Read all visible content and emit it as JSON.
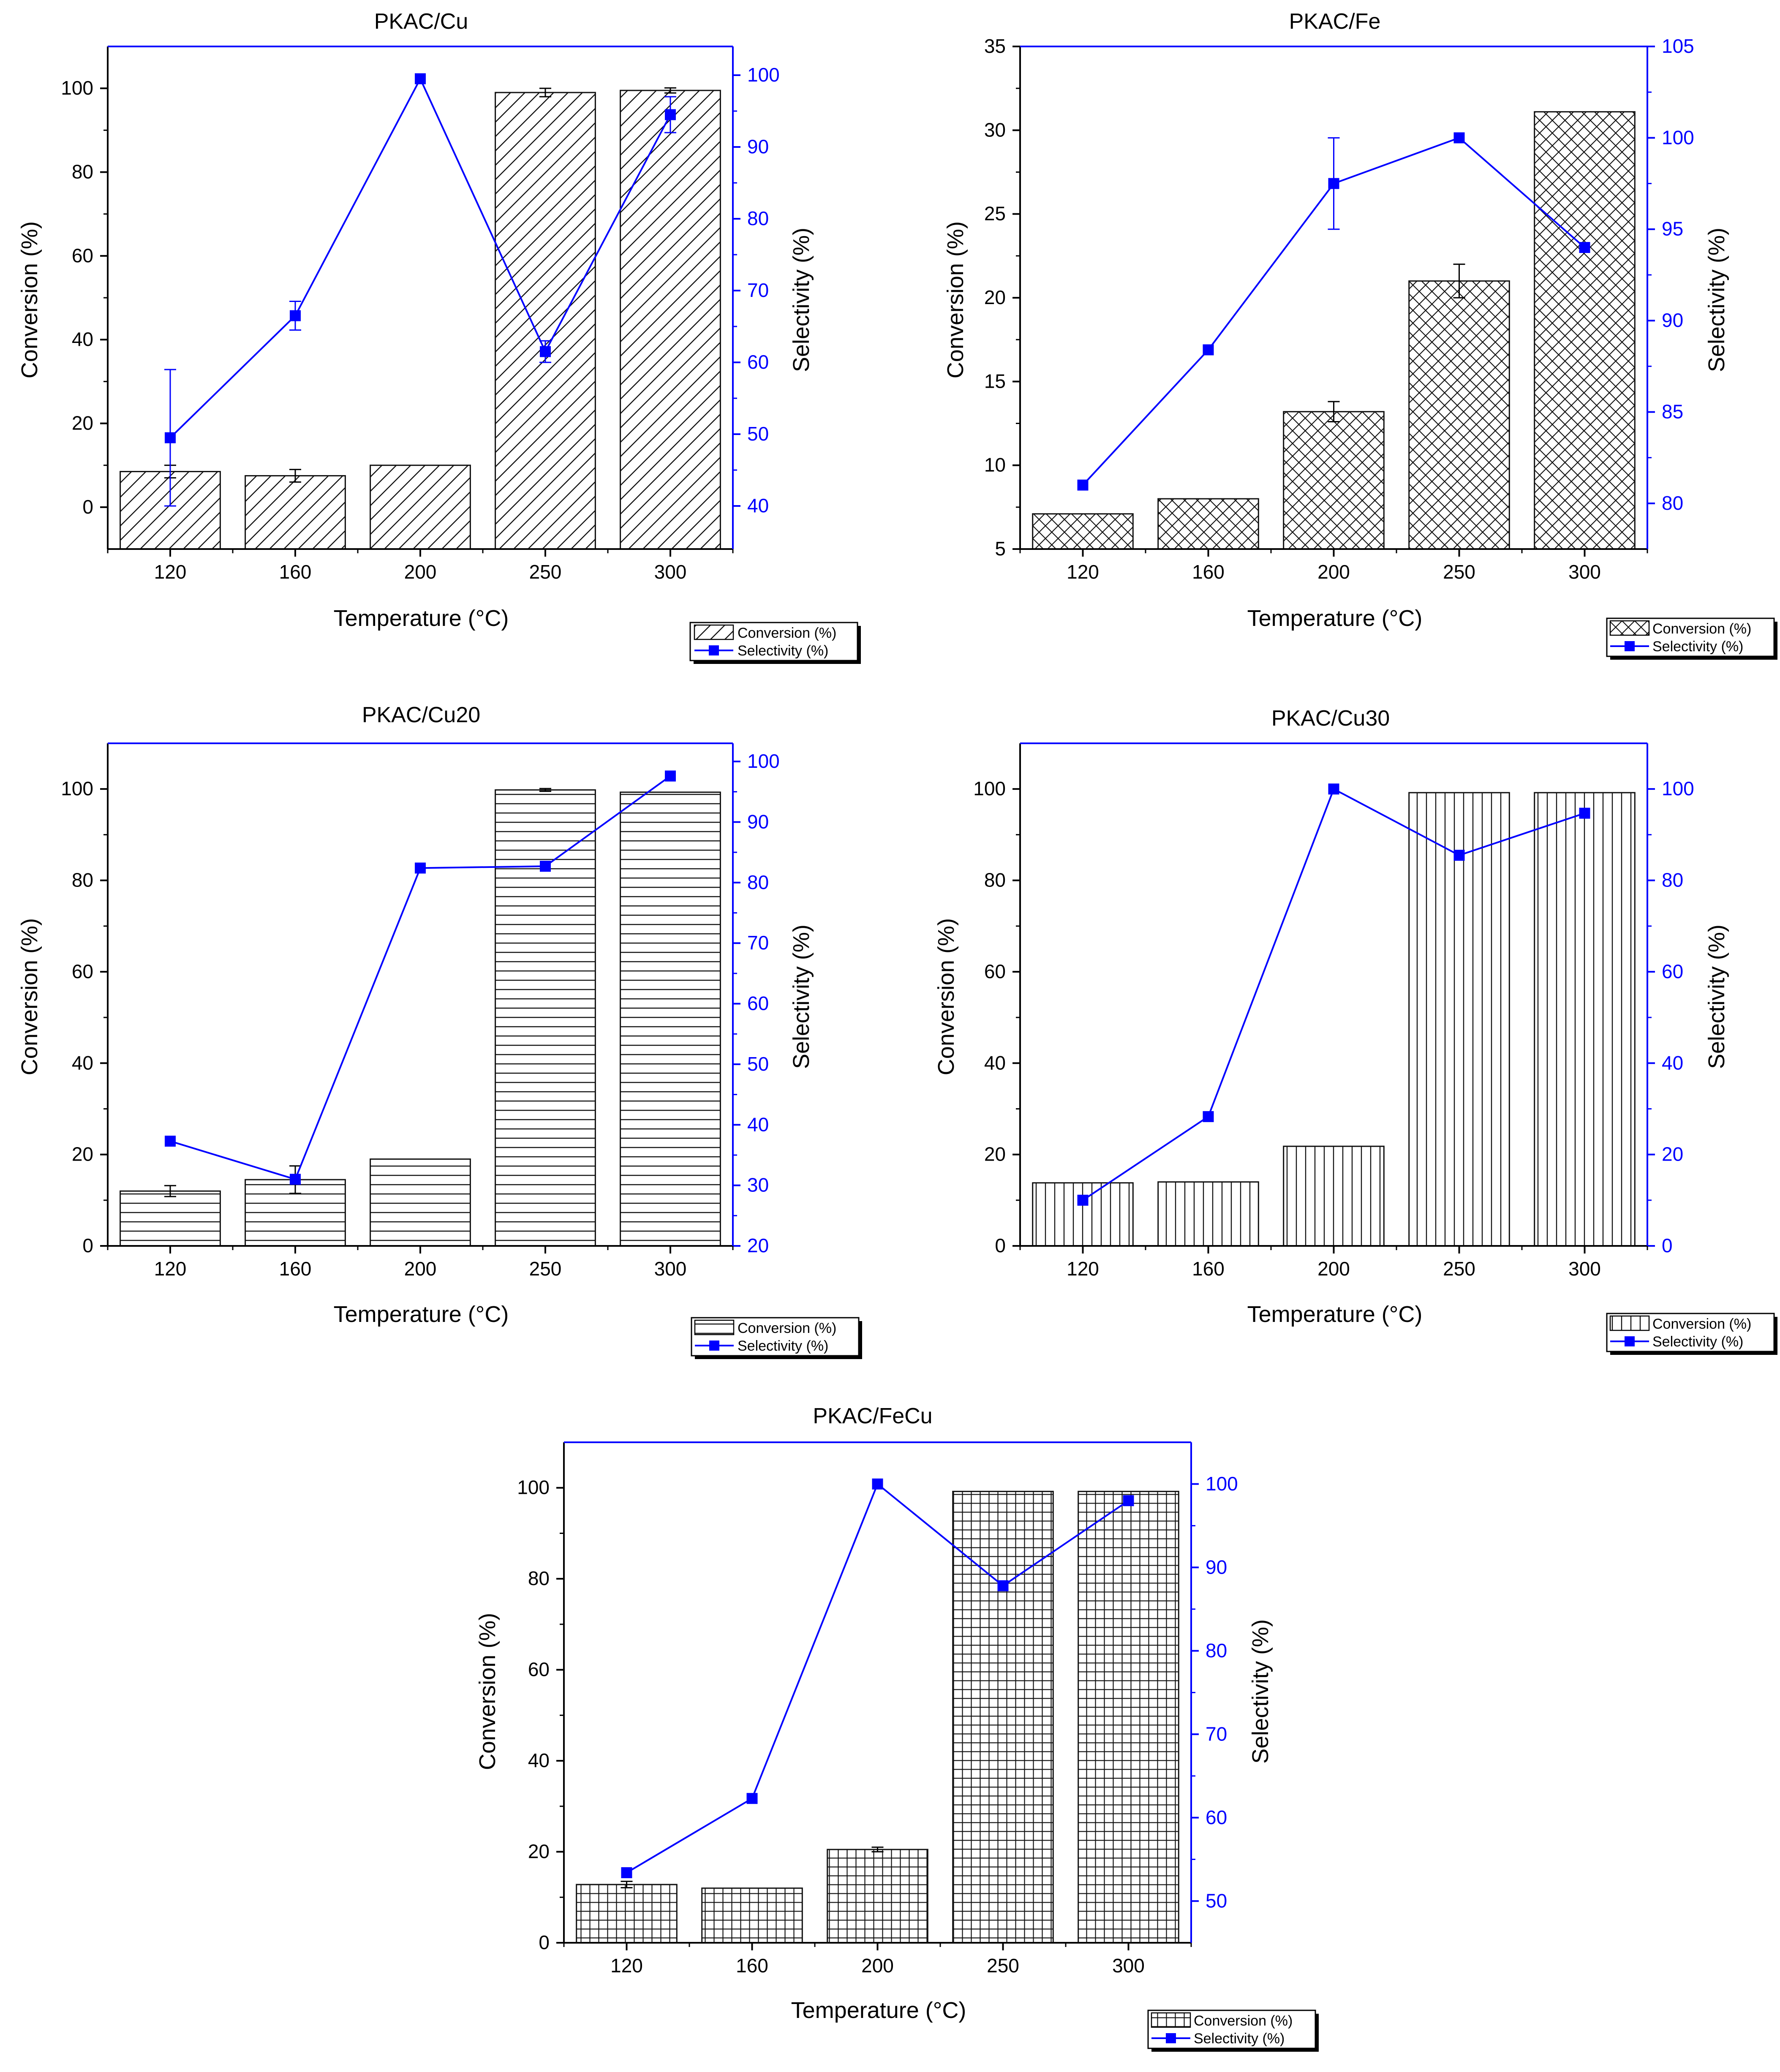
{
  "figure": {
    "background": "#ffffff",
    "bar_stroke": "#111111",
    "line_color": "#0000ff",
    "axis_color": "#000000"
  },
  "chart_data": [
    {
      "id": "cu",
      "type": "bar+line",
      "title": "PKAC/Cu",
      "xlabel": "Temperature (°C)",
      "ylabel": "Conversion (%)",
      "y2label": "Selectivity (%)",
      "categories": [
        "120",
        "160",
        "200",
        "250",
        "300"
      ],
      "ylim": [
        -10,
        110
      ],
      "yticks": [
        0,
        20,
        40,
        60,
        80,
        100
      ],
      "y2lim": [
        34,
        104
      ],
      "y2ticks": [
        40,
        50,
        60,
        70,
        80,
        90,
        100
      ],
      "pattern": "diagonal",
      "series": [
        {
          "name": "Conversion (%)",
          "type": "bar",
          "axis": "left",
          "values": [
            8.5,
            7.5,
            10,
            99,
            99.5
          ],
          "errors": [
            1.5,
            1.5,
            0,
            1,
            0.6
          ]
        },
        {
          "name": "Selectivity (%)",
          "type": "line",
          "axis": "right",
          "values": [
            49.5,
            66.5,
            99.5,
            61.5,
            94.5
          ],
          "errors": [
            9.5,
            2,
            0,
            1.5,
            2.5
          ]
        }
      ],
      "legend": [
        "Conversion (%)",
        "Selectivity (%)"
      ],
      "legend_position": "bottom-right"
    },
    {
      "id": "fe",
      "type": "bar+line",
      "title": "PKAC/Fe",
      "xlabel": "Temperature (°C)",
      "ylabel": "Conversion (%)",
      "y2label": "Selectivity (%)",
      "categories": [
        "120",
        "160",
        "200",
        "250",
        "300"
      ],
      "ylim": [
        5,
        35
      ],
      "yticks": [
        5,
        10,
        15,
        20,
        25,
        30,
        35
      ],
      "y2lim": [
        77.5,
        105
      ],
      "y2ticks": [
        80,
        85,
        90,
        95,
        100,
        105
      ],
      "pattern": "crosshatch",
      "series": [
        {
          "name": "Conversion (%)",
          "type": "bar",
          "axis": "left",
          "values": [
            7.1,
            8,
            13.2,
            21,
            31.1
          ],
          "errors": [
            0,
            0,
            0.6,
            1,
            0
          ]
        },
        {
          "name": "Selectivity (%)",
          "type": "line",
          "axis": "right",
          "values": [
            81,
            88.4,
            97.5,
            100,
            94
          ],
          "errors": [
            0,
            0,
            2.5,
            0,
            0
          ]
        }
      ],
      "legend": [
        "Conversion (%)",
        "Selectivity (%)"
      ],
      "legend_position": "bottom-right"
    },
    {
      "id": "cu20",
      "type": "bar+line",
      "title": "PKAC/Cu20",
      "xlabel": "Temperature (°C)",
      "ylabel": "Conversion (%)",
      "y2label": "Selectivity (%)",
      "categories": [
        "120",
        "160",
        "200",
        "250",
        "300"
      ],
      "ylim": [
        0,
        110
      ],
      "yticks": [
        0,
        20,
        40,
        60,
        80,
        100
      ],
      "y2lim": [
        20,
        103
      ],
      "y2ticks": [
        20,
        30,
        40,
        50,
        60,
        70,
        80,
        90,
        100
      ],
      "pattern": "horizontal",
      "series": [
        {
          "name": "Conversion (%)",
          "type": "bar",
          "axis": "left",
          "values": [
            12,
            14.5,
            19,
            99.8,
            99.3
          ],
          "errors": [
            1.2,
            3,
            0,
            0.3,
            0
          ]
        },
        {
          "name": "Selectivity (%)",
          "type": "line",
          "axis": "right",
          "values": [
            37.3,
            31,
            82.4,
            82.7,
            97.6
          ],
          "errors": [
            0,
            0,
            0,
            0,
            0
          ]
        }
      ],
      "legend": [
        "Conversion (%)",
        "Selectivity (%)"
      ],
      "legend_position": "bottom-right"
    },
    {
      "id": "cu30",
      "type": "bar+line",
      "title": "PKAC/Cu30",
      "xlabel": "Temperature (°C)",
      "ylabel": "Conversion (%)",
      "y2label": "Selectivity (%)",
      "categories": [
        "120",
        "160",
        "200",
        "250",
        "300"
      ],
      "ylim": [
        0,
        110
      ],
      "yticks": [
        0,
        20,
        40,
        60,
        80,
        100
      ],
      "y2lim": [
        0,
        110
      ],
      "y2ticks": [
        0,
        20,
        40,
        60,
        80,
        100
      ],
      "pattern": "vertical",
      "series": [
        {
          "name": "Conversion (%)",
          "type": "bar",
          "axis": "left",
          "values": [
            13.8,
            14,
            21.8,
            99.2,
            99.2
          ],
          "errors": [
            0,
            0,
            0,
            0,
            0
          ]
        },
        {
          "name": "Selectivity (%)",
          "type": "line",
          "axis": "right",
          "values": [
            10,
            28.3,
            100,
            85.5,
            94.7
          ],
          "errors": [
            0,
            0,
            0,
            0,
            0
          ]
        }
      ],
      "legend": [
        "Conversion (%)",
        "Selectivity (%)"
      ],
      "legend_position": "bottom-right"
    },
    {
      "id": "fecu",
      "type": "bar+line",
      "title": "PKAC/FeCu",
      "xlabel": "Temperature (°C)",
      "ylabel": "Conversion (%)",
      "y2label": "Selectivity (%)",
      "categories": [
        "120",
        "160",
        "200",
        "250",
        "300"
      ],
      "ylim": [
        0,
        110
      ],
      "yticks": [
        0,
        20,
        40,
        60,
        80,
        100
      ],
      "y2lim": [
        45,
        105
      ],
      "y2ticks": [
        50,
        60,
        70,
        80,
        90,
        100
      ],
      "pattern": "grid",
      "series": [
        {
          "name": "Conversion (%)",
          "type": "bar",
          "axis": "left",
          "values": [
            12.8,
            12,
            20.5,
            99.2,
            99.2
          ],
          "errors": [
            0.7,
            0,
            0.5,
            0,
            0
          ]
        },
        {
          "name": "Selectivity (%)",
          "type": "line",
          "axis": "right",
          "values": [
            53.4,
            62.3,
            100,
            87.8,
            98
          ],
          "errors": [
            0,
            0,
            0,
            0,
            0
          ]
        }
      ],
      "legend": [
        "Conversion (%)",
        "Selectivity (%)"
      ],
      "legend_position": "bottom-right"
    }
  ]
}
